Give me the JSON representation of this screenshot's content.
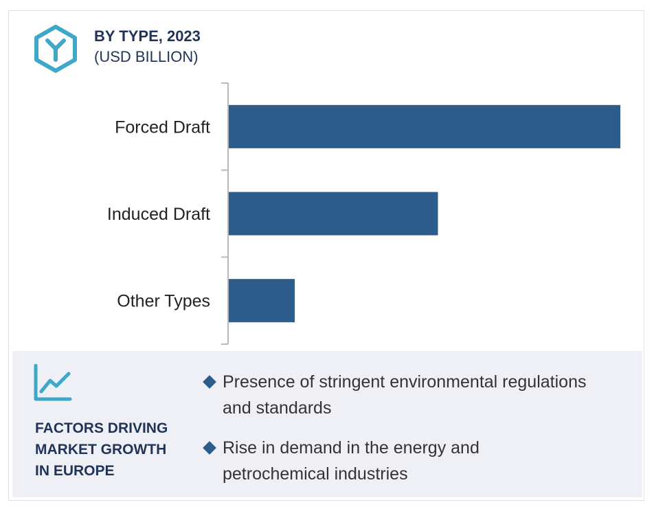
{
  "header": {
    "title": "BY TYPE, 2023",
    "subtitle": "(USD BILLION)",
    "icon": "hexagon-y-icon",
    "accent_color": "#3fa7c8"
  },
  "chart_data": {
    "type": "bar",
    "orientation": "horizontal",
    "title": "BY TYPE, 2023",
    "subtitle": "(USD BILLION)",
    "categories": [
      "Forced Draft",
      "Induced Draft",
      "Other Types"
    ],
    "values": [
      100,
      53.5,
      17
    ],
    "value_note": "relative bar lengths; no axis scale or data labels printed",
    "xlim": [
      0,
      100
    ],
    "bar_color": "#2d5b8a",
    "grid": false,
    "legend": "none"
  },
  "factors_panel": {
    "icon": "trend-chart-icon",
    "title": "FACTORS DRIVING\nMARKET GROWTH\nIN EUROPE",
    "items": [
      "Presence of stringent environmental regulations and standards",
      "Rise in demand in the energy and petrochemical industries"
    ],
    "background": "#eef0f5"
  }
}
